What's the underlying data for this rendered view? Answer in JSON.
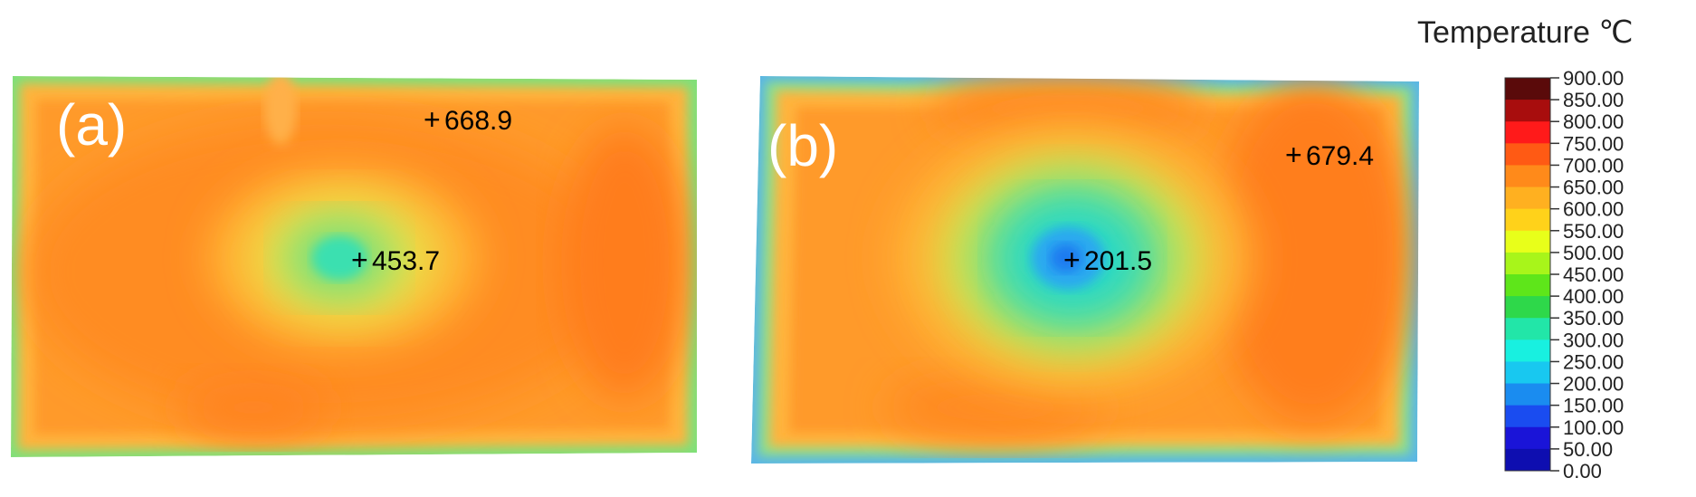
{
  "legend": {
    "title": "Temperature ℃",
    "ticks": [
      "900.00",
      "850.00",
      "800.00",
      "750.00",
      "700.00",
      "650.00",
      "600.00",
      "550.00",
      "500.00",
      "450.00",
      "400.00",
      "350.00",
      "300.00",
      "250.00",
      "200.00",
      "150.00",
      "100.00",
      "50.00",
      "0.00"
    ],
    "band_colors": [
      "#5a0a0a",
      "#a80d0d",
      "#ff1a1a",
      "#ff5a14",
      "#ff8a1a",
      "#ffb020",
      "#ffd21a",
      "#e8ff1a",
      "#a8f51a",
      "#5ee61a",
      "#2ed84a",
      "#22e6a8",
      "#18f0e0",
      "#18c8f0",
      "#1a8cf0",
      "#1a4cf0",
      "#1a14d8",
      "#0e0eb0",
      "#0a0a78"
    ]
  },
  "panels": [
    {
      "label": "(a)",
      "probes": [
        {
          "text": "668.9",
          "value": 668.9
        },
        {
          "text": "453.7",
          "value": 453.7
        }
      ]
    },
    {
      "label": "(b)",
      "probes": [
        {
          "text": "679.4",
          "value": 679.4
        },
        {
          "text": "201.5",
          "value": 201.5
        }
      ]
    }
  ]
}
